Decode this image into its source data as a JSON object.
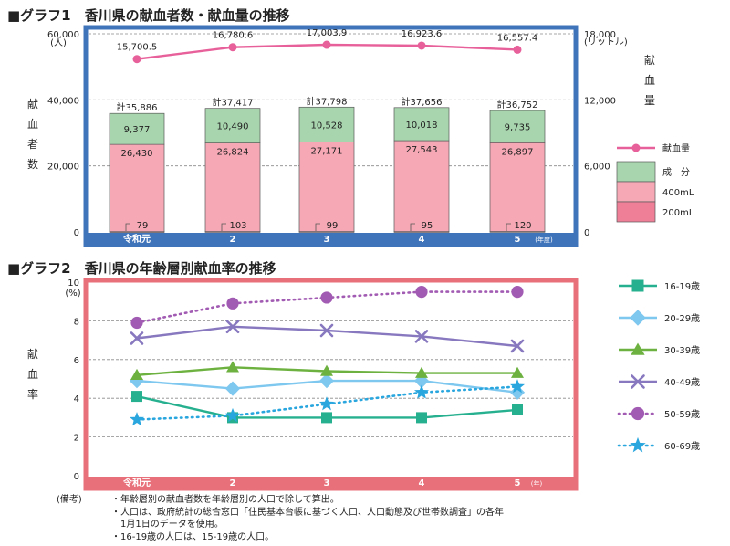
{
  "colors": {
    "frame1": "#3f74bb",
    "frame2": "#e8707a",
    "donation_line": "#e8609a",
    "bar_top": "#a8d5ae",
    "bar_mid": "#f6a9b5",
    "bar_low": "#ef7f97",
    "s1619": "#27b08f",
    "s2029": "#7ec7ef",
    "s3039": "#6db240",
    "s4049": "#8778bf",
    "s5059": "#a25bb2",
    "s6069": "#29a6de"
  },
  "chart_data": [
    {
      "type": "bar",
      "stacked": true,
      "title": "■グラフ1　香川県の献血者数・献血量の推移",
      "categories": [
        "令和元",
        "2",
        "3",
        "4",
        "5"
      ],
      "x_unit": "(年度)",
      "ylabel": "献血者数",
      "y_unit": "(人)",
      "ylim": [
        0,
        60000
      ],
      "yticks": [
        "0",
        "20,000",
        "40,000",
        "60,000"
      ],
      "y2label": "献血量",
      "y2_unit": "(リットル)",
      "y2lim": [
        0,
        18000
      ],
      "y2ticks": [
        "0",
        "6,000",
        "12,000",
        "18,000"
      ],
      "grid": true,
      "legend_position": "right",
      "series": [
        {
          "name": "200mL",
          "values": [
            79,
            103,
            99,
            95,
            120
          ],
          "labels": [
            "79",
            "103",
            "99",
            "95",
            "120"
          ]
        },
        {
          "name": "400mL",
          "values": [
            26430,
            26824,
            27171,
            27543,
            26897
          ],
          "labels": [
            "26,430",
            "26,824",
            "27,171",
            "27,543",
            "26,897"
          ]
        },
        {
          "name": "成　分",
          "values": [
            9377,
            10490,
            10528,
            10018,
            9735
          ],
          "labels": [
            "9,377",
            "10,490",
            "10,528",
            "10,018",
            "9,735"
          ]
        }
      ],
      "totals": [
        35886,
        37417,
        37798,
        37656,
        36752
      ],
      "total_labels": [
        "計35,886",
        "計37,417",
        "計37,798",
        "計37,656",
        "計36,752"
      ],
      "line_series": {
        "name": "献血量",
        "axis": "right",
        "values": [
          15700.5,
          16780.6,
          17003.9,
          16923.6,
          16557.4
        ],
        "labels": [
          "15,700.5",
          "16,780.6",
          "17,003.9",
          "16,923.6",
          "16,557.4"
        ]
      }
    },
    {
      "type": "line",
      "title": "■グラフ2　香川県の年齢層別献血率の推移",
      "categories": [
        "令和元",
        "2",
        "3",
        "4",
        "5"
      ],
      "x_unit": "(年)",
      "ylabel": "献血率",
      "y_unit": "(%)",
      "ylim": [
        0,
        10
      ],
      "yticks": [
        "0",
        "2",
        "4",
        "6",
        "8",
        "10"
      ],
      "grid": true,
      "legend_position": "right",
      "series": [
        {
          "name": "16-19歳",
          "values": [
            4.1,
            3.0,
            3.0,
            3.0,
            3.4
          ],
          "marker": "square",
          "dashed": false
        },
        {
          "name": "20-29歳",
          "values": [
            4.9,
            4.5,
            4.9,
            4.9,
            4.3
          ],
          "marker": "diamond",
          "dashed": false
        },
        {
          "name": "30-39歳",
          "values": [
            5.2,
            5.6,
            5.4,
            5.3,
            5.3
          ],
          "marker": "triangle",
          "dashed": false
        },
        {
          "name": "40-49歳",
          "values": [
            7.1,
            7.7,
            7.5,
            7.2,
            6.7
          ],
          "marker": "x",
          "dashed": false
        },
        {
          "name": "50-59歳",
          "values": [
            7.9,
            8.9,
            9.2,
            9.5,
            9.5
          ],
          "marker": "circle",
          "dashed": true
        },
        {
          "name": "60-69歳",
          "values": [
            2.9,
            3.1,
            3.7,
            4.3,
            4.6
          ],
          "marker": "star",
          "dashed": true
        }
      ]
    }
  ],
  "notes": {
    "heading": "(備考)",
    "items": [
      "・年齢層別の献血者数を年齢層別の人口で除して算出。",
      "・人口は、政府統計の総合窓口「住民基本台帳に基づく人口、人口動態及び世帯数調査」の各年\n　1月1日のデータを使用。",
      "・16-19歳の人口は、15-19歳の人口。"
    ]
  }
}
